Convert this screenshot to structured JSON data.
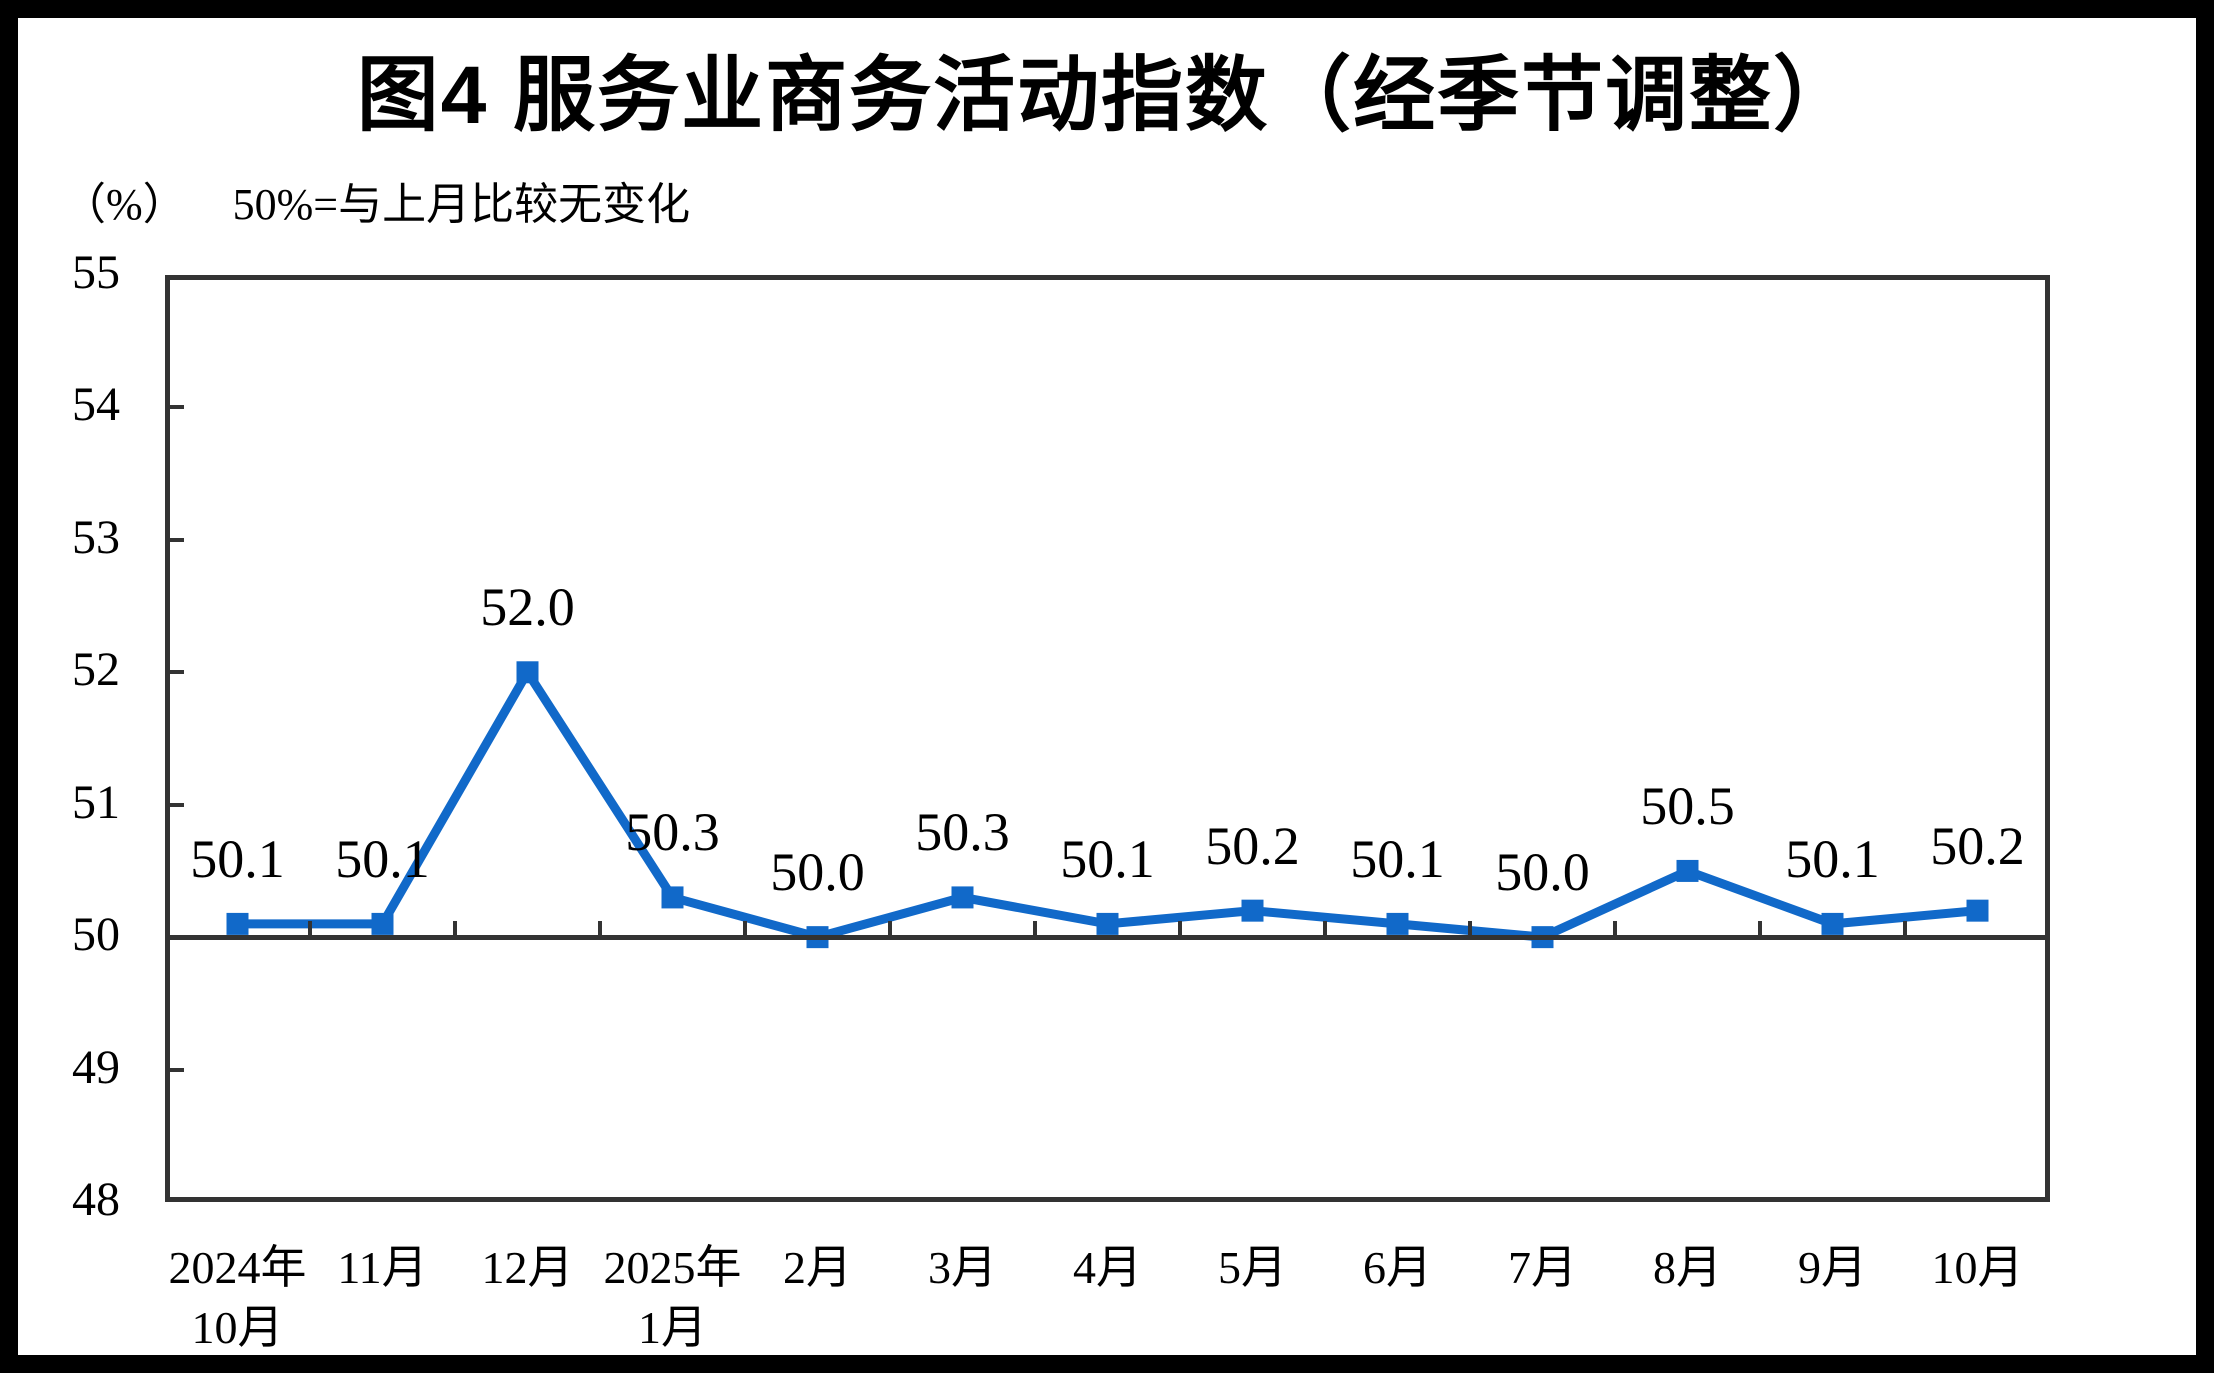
{
  "page": {
    "title": "图4 服务业商务活动指数（经季节调整）",
    "unit_label": "（%）",
    "note": "50%=与上月比较无变化"
  },
  "chart_data": {
    "type": "line",
    "title": "图4 服务业商务活动指数（经季节调整）",
    "unit_label": "（%）",
    "note": "50%=与上月比较无变化",
    "categories": [
      "2024年10月",
      "11月",
      "12月",
      "2025年1月",
      "2月",
      "3月",
      "4月",
      "5月",
      "6月",
      "7月",
      "8月",
      "9月",
      "10月"
    ],
    "category_lines": [
      [
        "2024年",
        "10月"
      ],
      [
        "11月"
      ],
      [
        "12月"
      ],
      [
        "2025年",
        "1月"
      ],
      [
        "2月"
      ],
      [
        "3月"
      ],
      [
        "4月"
      ],
      [
        "5月"
      ],
      [
        "6月"
      ],
      [
        "7月"
      ],
      [
        "8月"
      ],
      [
        "9月"
      ],
      [
        "10月"
      ]
    ],
    "values": [
      50.1,
      50.1,
      52.0,
      50.3,
      50.0,
      50.3,
      50.1,
      50.2,
      50.1,
      50.0,
      50.5,
      50.1,
      50.2
    ],
    "data_labels": [
      "50.1",
      "50.1",
      "52.0",
      "50.3",
      "50.0",
      "50.3",
      "50.1",
      "50.2",
      "50.1",
      "50.0",
      "50.5",
      "50.1",
      "50.2"
    ],
    "ylim": [
      48,
      55
    ],
    "yticks": [
      48,
      49,
      50,
      51,
      52,
      53,
      54,
      55
    ],
    "category_axis_crosses_at": 50,
    "grid": false,
    "legend": "none",
    "marker": "square",
    "colors": {
      "line": "#1169c9",
      "marker": "#1169c9",
      "axis": "#333333",
      "text": "#000000",
      "outer_border": "#000000",
      "background": "#ffffff"
    }
  }
}
